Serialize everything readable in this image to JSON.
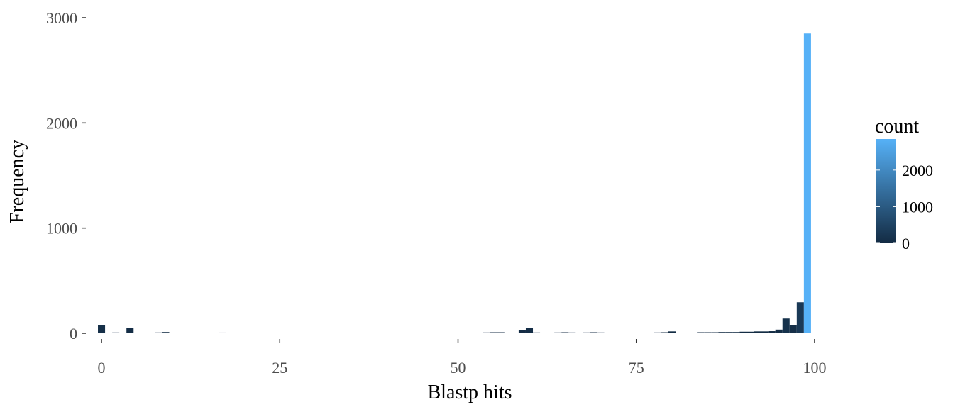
{
  "chart_data": {
    "type": "bar",
    "title": "",
    "xlabel": "Blastp hits",
    "ylabel": "Frequency",
    "xlim": [
      -1,
      101
    ],
    "ylim": [
      0,
      3000
    ],
    "x_ticks": [
      0,
      25,
      50,
      75,
      100
    ],
    "y_ticks": [
      0,
      1000,
      2000,
      3000
    ],
    "grid": false,
    "legend": {
      "title": "count",
      "placement": "right",
      "ticks": [
        0,
        1000,
        2000
      ],
      "range": [
        0,
        2850
      ],
      "color_low": "#132b43",
      "color_high": "#56b1f7"
    },
    "x": [
      0,
      1,
      2,
      3,
      4,
      5,
      6,
      7,
      8,
      9,
      10,
      11,
      12,
      13,
      14,
      15,
      16,
      17,
      18,
      19,
      20,
      21,
      22,
      23,
      24,
      25,
      26,
      27,
      28,
      29,
      30,
      31,
      32,
      33,
      34,
      35,
      36,
      37,
      38,
      39,
      40,
      41,
      42,
      43,
      44,
      45,
      46,
      47,
      48,
      49,
      50,
      51,
      52,
      53,
      54,
      55,
      56,
      57,
      58,
      59,
      60,
      61,
      62,
      63,
      64,
      65,
      66,
      67,
      68,
      69,
      70,
      71,
      72,
      73,
      74,
      75,
      76,
      77,
      78,
      79,
      80,
      81,
      82,
      83,
      84,
      85,
      86,
      87,
      88,
      89,
      90,
      91,
      92,
      93,
      94,
      95,
      96,
      97,
      98,
      99
    ],
    "values": [
      75,
      2,
      8,
      2,
      50,
      4,
      4,
      4,
      8,
      12,
      4,
      5,
      3,
      3,
      3,
      5,
      3,
      7,
      3,
      5,
      4,
      3,
      2,
      3,
      3,
      5,
      3,
      3,
      3,
      3,
      3,
      3,
      3,
      3,
      0,
      3,
      3,
      2,
      3,
      5,
      3,
      3,
      3,
      3,
      4,
      3,
      6,
      3,
      3,
      3,
      3,
      4,
      3,
      5,
      8,
      10,
      10,
      5,
      6,
      28,
      50,
      8,
      6,
      6,
      8,
      10,
      8,
      6,
      8,
      10,
      8,
      6,
      5,
      5,
      5,
      5,
      5,
      5,
      8,
      10,
      18,
      6,
      6,
      6,
      10,
      10,
      10,
      12,
      12,
      12,
      15,
      15,
      18,
      18,
      20,
      35,
      140,
      75,
      295,
      2850
    ]
  }
}
